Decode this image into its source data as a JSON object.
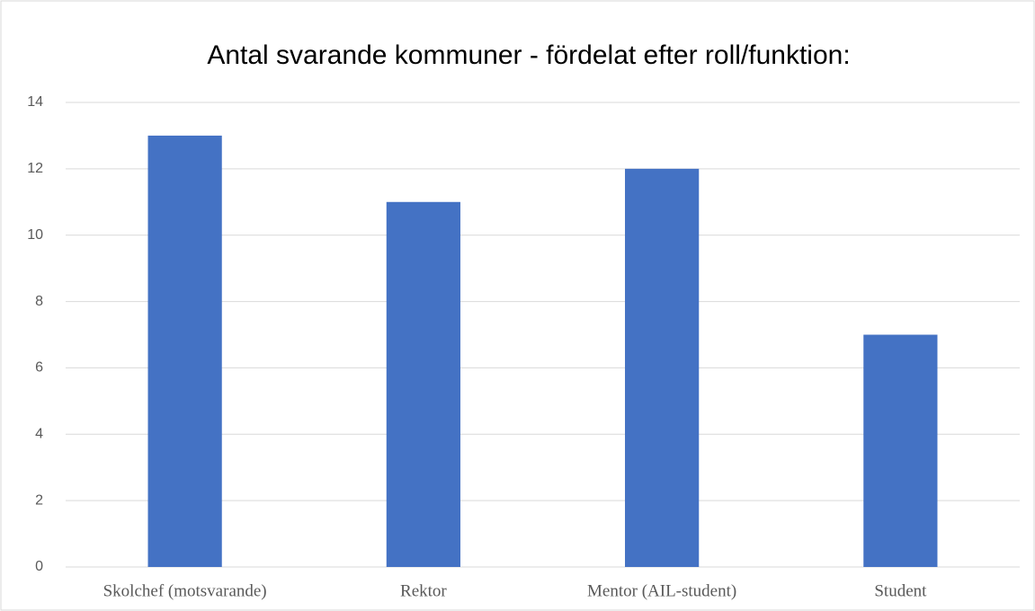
{
  "chart_data": {
    "type": "bar",
    "title": "Antal svarande kommuner - fördelat efter roll/funktion:",
    "categories": [
      "Skolchef (motsvarande)",
      "Rektor",
      "Mentor (AIL-student)",
      "Student"
    ],
    "values": [
      13,
      11,
      12,
      7
    ],
    "color": "#4472c4",
    "ylim": [
      0,
      14
    ],
    "yticks": [
      0,
      2,
      4,
      6,
      8,
      10,
      12,
      14
    ],
    "grid": true
  }
}
